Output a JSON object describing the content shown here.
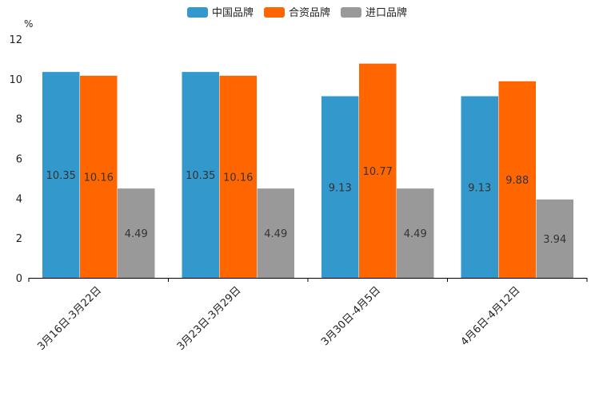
{
  "chart_data": {
    "type": "bar",
    "title": "",
    "xlabel": "",
    "ylabel": "%",
    "ylim": [
      0,
      12
    ],
    "yticks": [
      0,
      2,
      4,
      6,
      8,
      10,
      12
    ],
    "grid": false,
    "legend_position": "top-center",
    "categories": [
      "3月16日-3月22日",
      "3月23日-3月29日",
      "3月30日-4月5日",
      "4月6日-4月12日"
    ],
    "series": [
      {
        "name": "中国品牌",
        "color": "#3399cc",
        "values": [
          10.35,
          10.35,
          9.13,
          9.13
        ]
      },
      {
        "name": "合资品牌",
        "color": "#ff6600",
        "values": [
          10.16,
          10.16,
          10.77,
          9.88
        ]
      },
      {
        "name": "进口品牌",
        "color": "#999999",
        "values": [
          4.49,
          4.49,
          4.49,
          3.94
        ]
      }
    ]
  }
}
